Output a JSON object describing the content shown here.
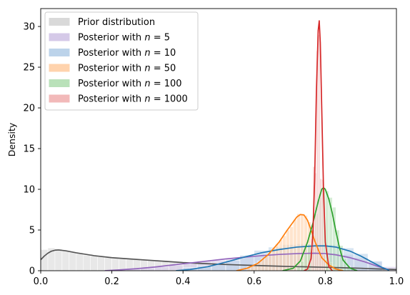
{
  "chart_data": {
    "type": "area",
    "title": "",
    "xlabel": "",
    "ylabel": "Density",
    "xlim": [
      0.0,
      1.0
    ],
    "ylim": [
      0,
      32.2
    ],
    "x_ticks": [
      0.0,
      0.2,
      0.4,
      0.6,
      0.8,
      1.0
    ],
    "x_tick_labels": [
      "0.0",
      "0.2",
      "0.4",
      "0.6",
      "0.8",
      "1.0"
    ],
    "y_ticks": [
      0,
      5,
      10,
      15,
      20,
      25,
      30
    ],
    "y_tick_labels": [
      "0",
      "5",
      "10",
      "15",
      "20",
      "25",
      "30"
    ],
    "grid": false,
    "legend_position": "top-left",
    "series": [
      {
        "name": "Prior distribution",
        "legend_prefix": "Prior distribution",
        "legend_n": "",
        "color": "#555555",
        "hist_color": "#d9d9d9",
        "bin_width": 0.02,
        "hist": [
          [
            0.0,
            2.6
          ],
          [
            0.02,
            2.8
          ],
          [
            0.04,
            2.7
          ],
          [
            0.06,
            2.5
          ],
          [
            0.08,
            2.3
          ],
          [
            0.1,
            2.1
          ],
          [
            0.12,
            1.9
          ],
          [
            0.14,
            1.8
          ],
          [
            0.16,
            1.7
          ],
          [
            0.18,
            1.6
          ],
          [
            0.2,
            1.5
          ],
          [
            0.22,
            1.45
          ],
          [
            0.24,
            1.4
          ],
          [
            0.26,
            1.35
          ],
          [
            0.28,
            1.3
          ],
          [
            0.3,
            1.25
          ],
          [
            0.32,
            1.2
          ],
          [
            0.34,
            1.15
          ],
          [
            0.36,
            1.1
          ],
          [
            0.38,
            1.05
          ],
          [
            0.4,
            1.0
          ],
          [
            0.42,
            0.95
          ],
          [
            0.44,
            0.9
          ],
          [
            0.46,
            0.85
          ],
          [
            0.48,
            0.8
          ],
          [
            0.5,
            0.78
          ],
          [
            0.52,
            0.75
          ],
          [
            0.54,
            0.72
          ],
          [
            0.56,
            0.7
          ],
          [
            0.58,
            0.65
          ],
          [
            0.6,
            0.62
          ],
          [
            0.62,
            0.6
          ],
          [
            0.64,
            0.57
          ],
          [
            0.66,
            0.55
          ],
          [
            0.68,
            0.52
          ],
          [
            0.7,
            0.5
          ],
          [
            0.72,
            0.47
          ],
          [
            0.74,
            0.45
          ],
          [
            0.76,
            0.42
          ],
          [
            0.78,
            0.4
          ],
          [
            0.8,
            0.37
          ],
          [
            0.82,
            0.35
          ],
          [
            0.84,
            0.32
          ],
          [
            0.86,
            0.3
          ],
          [
            0.88,
            0.27
          ],
          [
            0.9,
            0.25
          ],
          [
            0.92,
            0.22
          ],
          [
            0.94,
            0.2
          ],
          [
            0.96,
            0.15
          ],
          [
            0.98,
            0.1
          ]
        ],
        "kde": [
          [
            0.0,
            1.35
          ],
          [
            0.01,
            1.8
          ],
          [
            0.02,
            2.15
          ],
          [
            0.03,
            2.4
          ],
          [
            0.04,
            2.52
          ],
          [
            0.05,
            2.55
          ],
          [
            0.07,
            2.45
          ],
          [
            0.1,
            2.2
          ],
          [
            0.15,
            1.85
          ],
          [
            0.2,
            1.6
          ],
          [
            0.25,
            1.45
          ],
          [
            0.3,
            1.3
          ],
          [
            0.35,
            1.15
          ],
          [
            0.4,
            1.0
          ],
          [
            0.45,
            0.9
          ],
          [
            0.5,
            0.8
          ],
          [
            0.55,
            0.72
          ],
          [
            0.6,
            0.65
          ],
          [
            0.65,
            0.58
          ],
          [
            0.7,
            0.52
          ],
          [
            0.75,
            0.47
          ],
          [
            0.8,
            0.42
          ],
          [
            0.85,
            0.36
          ],
          [
            0.9,
            0.3
          ],
          [
            0.95,
            0.22
          ],
          [
            1.0,
            0.15
          ]
        ]
      },
      {
        "name": "Posterior with n=5",
        "legend_prefix": "Posterior with ",
        "legend_n": "5",
        "color": "#9467bd",
        "hist_color": "#d5c9e8",
        "bin_width": 0.04,
        "hist": [
          [
            0.2,
            0.1
          ],
          [
            0.24,
            0.2
          ],
          [
            0.28,
            0.35
          ],
          [
            0.32,
            0.5
          ],
          [
            0.36,
            0.7
          ],
          [
            0.4,
            0.95
          ],
          [
            0.44,
            1.2
          ],
          [
            0.48,
            1.3
          ],
          [
            0.52,
            1.5
          ],
          [
            0.56,
            1.7
          ],
          [
            0.6,
            1.9
          ],
          [
            0.64,
            2.0
          ],
          [
            0.68,
            2.2
          ],
          [
            0.72,
            2.3
          ],
          [
            0.76,
            2.3
          ],
          [
            0.8,
            2.2
          ],
          [
            0.84,
            2.0
          ],
          [
            0.88,
            1.6
          ],
          [
            0.92,
            1.1
          ],
          [
            0.96,
            0.5
          ]
        ],
        "kde": [
          [
            0.18,
            0.0
          ],
          [
            0.22,
            0.1
          ],
          [
            0.27,
            0.25
          ],
          [
            0.32,
            0.45
          ],
          [
            0.37,
            0.7
          ],
          [
            0.42,
            0.95
          ],
          [
            0.47,
            1.2
          ],
          [
            0.52,
            1.45
          ],
          [
            0.57,
            1.65
          ],
          [
            0.62,
            1.85
          ],
          [
            0.67,
            2.0
          ],
          [
            0.72,
            2.1
          ],
          [
            0.77,
            2.15
          ],
          [
            0.8,
            2.1
          ],
          [
            0.83,
            1.95
          ],
          [
            0.87,
            1.6
          ],
          [
            0.91,
            1.1
          ],
          [
            0.95,
            0.5
          ],
          [
            0.98,
            0.1
          ]
        ]
      },
      {
        "name": "Posterior with n=10",
        "legend_prefix": "Posterior with ",
        "legend_n": "10",
        "color": "#1f77b4",
        "hist_color": "#bcd3ea",
        "bin_width": 0.04,
        "hist": [
          [
            0.4,
            0.4
          ],
          [
            0.44,
            0.6
          ],
          [
            0.48,
            0.9
          ],
          [
            0.52,
            1.3
          ],
          [
            0.56,
            1.9
          ],
          [
            0.6,
            2.5
          ],
          [
            0.64,
            2.9
          ],
          [
            0.68,
            3.2
          ],
          [
            0.72,
            3.3
          ],
          [
            0.76,
            3.3
          ],
          [
            0.8,
            3.2
          ],
          [
            0.84,
            2.8
          ],
          [
            0.88,
            2.1
          ],
          [
            0.92,
            1.2
          ]
        ],
        "kde": [
          [
            0.38,
            0.0
          ],
          [
            0.42,
            0.15
          ],
          [
            0.47,
            0.5
          ],
          [
            0.52,
            1.05
          ],
          [
            0.57,
            1.65
          ],
          [
            0.62,
            2.2
          ],
          [
            0.67,
            2.6
          ],
          [
            0.72,
            2.9
          ],
          [
            0.77,
            3.05
          ],
          [
            0.8,
            3.05
          ],
          [
            0.83,
            2.9
          ],
          [
            0.87,
            2.4
          ],
          [
            0.9,
            1.8
          ],
          [
            0.93,
            1.1
          ],
          [
            0.96,
            0.4
          ],
          [
            0.98,
            0.05
          ]
        ]
      },
      {
        "name": "Posterior with n=50",
        "legend_prefix": "Posterior with ",
        "legend_n": "50",
        "color": "#ff7f0e",
        "hist_color": "#ffd3ad",
        "bin_width": 0.01,
        "hist": [
          [
            0.58,
            0.5
          ],
          [
            0.59,
            0.7
          ],
          [
            0.6,
            0.9
          ],
          [
            0.61,
            1.2
          ],
          [
            0.62,
            1.5
          ],
          [
            0.63,
            2.0
          ],
          [
            0.64,
            2.3
          ],
          [
            0.65,
            2.8
          ],
          [
            0.66,
            3.3
          ],
          [
            0.67,
            3.8
          ],
          [
            0.68,
            4.3
          ],
          [
            0.69,
            5.0
          ],
          [
            0.7,
            5.4
          ],
          [
            0.71,
            6.3
          ],
          [
            0.72,
            7.0
          ],
          [
            0.73,
            7.0
          ],
          [
            0.74,
            6.8
          ],
          [
            0.75,
            6.0
          ],
          [
            0.76,
            5.0
          ],
          [
            0.77,
            4.0
          ],
          [
            0.78,
            3.0
          ],
          [
            0.79,
            2.0
          ],
          [
            0.8,
            1.4
          ],
          [
            0.81,
            1.0
          ],
          [
            0.82,
            0.7
          ],
          [
            0.83,
            0.4
          ],
          [
            0.84,
            0.2
          ]
        ],
        "kde": [
          [
            0.55,
            0.0
          ],
          [
            0.58,
            0.3
          ],
          [
            0.61,
            0.9
          ],
          [
            0.64,
            2.0
          ],
          [
            0.67,
            3.5
          ],
          [
            0.69,
            4.8
          ],
          [
            0.71,
            6.0
          ],
          [
            0.72,
            6.6
          ],
          [
            0.73,
            6.9
          ],
          [
            0.74,
            6.85
          ],
          [
            0.75,
            6.2
          ],
          [
            0.76,
            5.0
          ],
          [
            0.77,
            3.7
          ],
          [
            0.78,
            2.6
          ],
          [
            0.79,
            1.6
          ],
          [
            0.81,
            0.7
          ],
          [
            0.83,
            0.2
          ],
          [
            0.85,
            0.0
          ]
        ]
      },
      {
        "name": "Posterior with n=100",
        "legend_prefix": "Posterior with ",
        "legend_n": "100",
        "color": "#2ca02c",
        "hist_color": "#b9e1b9",
        "bin_width": 0.01,
        "hist": [
          [
            0.72,
            0.6
          ],
          [
            0.73,
            1.2
          ],
          [
            0.74,
            2.2
          ],
          [
            0.75,
            3.3
          ],
          [
            0.76,
            5.0
          ],
          [
            0.77,
            7.0
          ],
          [
            0.78,
            9.0
          ],
          [
            0.79,
            10.2
          ],
          [
            0.8,
            9.8
          ],
          [
            0.81,
            9.0
          ],
          [
            0.82,
            7.8
          ],
          [
            0.83,
            5.0
          ],
          [
            0.84,
            3.1
          ],
          [
            0.85,
            1.5
          ],
          [
            0.86,
            0.6
          ]
        ],
        "kde": [
          [
            0.68,
            0.0
          ],
          [
            0.71,
            0.3
          ],
          [
            0.73,
            1.2
          ],
          [
            0.75,
            3.5
          ],
          [
            0.765,
            5.8
          ],
          [
            0.78,
            8.5
          ],
          [
            0.79,
            10.0
          ],
          [
            0.795,
            10.2
          ],
          [
            0.8,
            10.0
          ],
          [
            0.81,
            8.8
          ],
          [
            0.82,
            7.0
          ],
          [
            0.83,
            4.8
          ],
          [
            0.84,
            2.8
          ],
          [
            0.85,
            1.3
          ],
          [
            0.87,
            0.3
          ],
          [
            0.89,
            0.0
          ]
        ]
      },
      {
        "name": "Posterior with n=1000",
        "legend_prefix": "Posterior with ",
        "legend_n": "1000",
        "color": "#d62728",
        "hist_color": "#f2b9b9",
        "bin_width": 0.005,
        "hist": [
          [
            0.76,
            4.0
          ],
          [
            0.765,
            12.8
          ],
          [
            0.77,
            12.0
          ],
          [
            0.775,
            27.0
          ],
          [
            0.78,
            29.0
          ],
          [
            0.785,
            11.3
          ],
          [
            0.79,
            11.2
          ],
          [
            0.795,
            2.0
          ]
        ],
        "kde": [
          [
            0.74,
            0.0
          ],
          [
            0.75,
            0.2
          ],
          [
            0.76,
            1.5
          ],
          [
            0.765,
            4.5
          ],
          [
            0.77,
            11.0
          ],
          [
            0.775,
            22.0
          ],
          [
            0.78,
            29.5
          ],
          [
            0.783,
            30.7
          ],
          [
            0.786,
            28.0
          ],
          [
            0.79,
            20.0
          ],
          [
            0.795,
            10.0
          ],
          [
            0.8,
            3.5
          ],
          [
            0.81,
            0.5
          ],
          [
            0.82,
            0.0
          ]
        ]
      }
    ]
  }
}
